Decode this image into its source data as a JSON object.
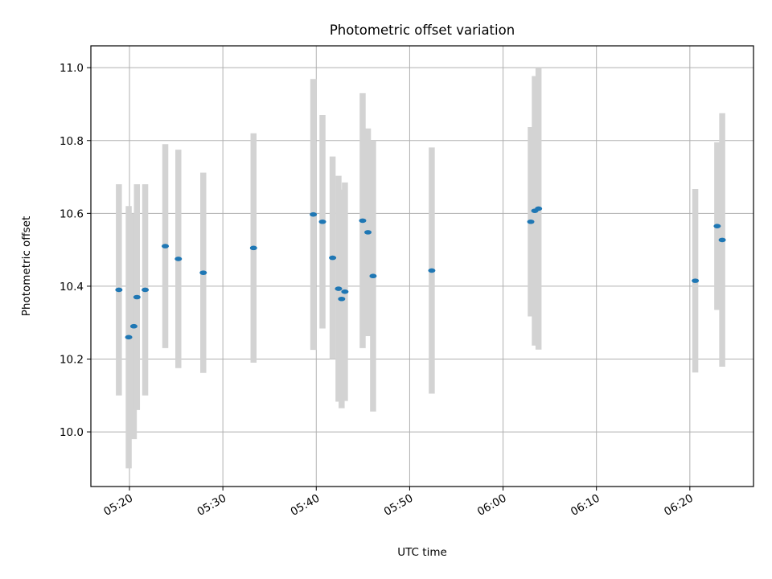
{
  "chart_data": {
    "type": "scatter",
    "title": "Photometric offset variation",
    "xlabel": "UTC time",
    "ylabel": "Photometric offset",
    "xlim": [
      "05:15:52",
      "06:26:49"
    ],
    "ylim": [
      9.85,
      11.06
    ],
    "grid": true,
    "x_ticks": [
      "05:20",
      "05:30",
      "05:40",
      "05:50",
      "06:00",
      "06:10",
      "06:20"
    ],
    "y_ticks": [
      "10.0",
      "10.2",
      "10.4",
      "10.6",
      "10.8",
      "11.0"
    ],
    "colors": {
      "points": "#1f77b4",
      "errorbars": "#d3d3d3",
      "grid": "#b0b0b0"
    },
    "points": [
      {
        "x": "05:18:52",
        "y": 10.39,
        "yerr": 0.29
      },
      {
        "x": "05:19:55",
        "y": 10.26,
        "yerr": 0.36
      },
      {
        "x": "05:20:28",
        "y": 10.29,
        "yerr": 0.31
      },
      {
        "x": "05:20:48",
        "y": 10.37,
        "yerr": 0.31
      },
      {
        "x": "05:21:41",
        "y": 10.39,
        "yerr": 0.29
      },
      {
        "x": "05:23:50",
        "y": 10.51,
        "yerr": 0.28
      },
      {
        "x": "05:25:14",
        "y": 10.475,
        "yerr": 0.3
      },
      {
        "x": "05:27:54",
        "y": 10.437,
        "yerr": 0.275
      },
      {
        "x": "05:33:17",
        "y": 10.505,
        "yerr": 0.315
      },
      {
        "x": "05:39:41",
        "y": 10.597,
        "yerr": 0.372
      },
      {
        "x": "05:40:40",
        "y": 10.577,
        "yerr": 0.293
      },
      {
        "x": "05:41:45",
        "y": 10.478,
        "yerr": 0.278
      },
      {
        "x": "05:42:23",
        "y": 10.393,
        "yerr": 0.31
      },
      {
        "x": "05:42:43",
        "y": 10.365,
        "yerr": 0.3
      },
      {
        "x": "05:43:04",
        "y": 10.385,
        "yerr": 0.3
      },
      {
        "x": "05:44:58",
        "y": 10.58,
        "yerr": 0.35
      },
      {
        "x": "05:45:32",
        "y": 10.548,
        "yerr": 0.285
      },
      {
        "x": "05:46:05",
        "y": 10.428,
        "yerr": 0.372
      },
      {
        "x": "05:52:22",
        "y": 10.443,
        "yerr": 0.338
      },
      {
        "x": "06:02:58",
        "y": 10.577,
        "yerr": 0.26
      },
      {
        "x": "06:03:24",
        "y": 10.607,
        "yerr": 0.37
      },
      {
        "x": "06:03:48",
        "y": 10.613,
        "yerr": 0.387
      },
      {
        "x": "06:20:35",
        "y": 10.415,
        "yerr": 0.252
      },
      {
        "x": "06:22:56",
        "y": 10.565,
        "yerr": 0.23
      },
      {
        "x": "06:23:28",
        "y": 10.527,
        "yerr": 0.348
      }
    ]
  }
}
